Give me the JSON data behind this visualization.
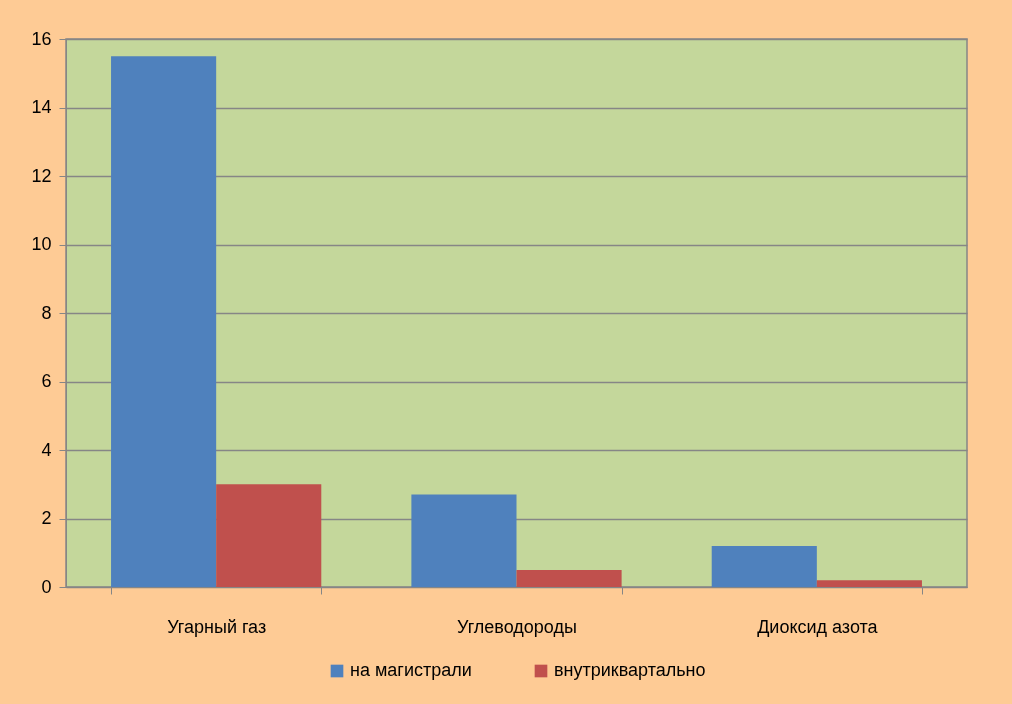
{
  "chart_data": {
    "type": "bar",
    "categories": [
      "Угарный газ",
      "Углеводороды",
      "Диоксид азота"
    ],
    "series": [
      {
        "name": "на магистрали",
        "color": "#4f81bd",
        "values": [
          15.5,
          2.7,
          1.2
        ]
      },
      {
        "name": "внутриквартально",
        "color": "#c0504d",
        "values": [
          3.0,
          0.5,
          0.2
        ]
      }
    ],
    "ylim": [
      0,
      16
    ],
    "yticks": [
      0,
      2,
      4,
      6,
      8,
      10,
      12,
      14,
      16
    ],
    "grid": "y",
    "legend": "bottom"
  }
}
